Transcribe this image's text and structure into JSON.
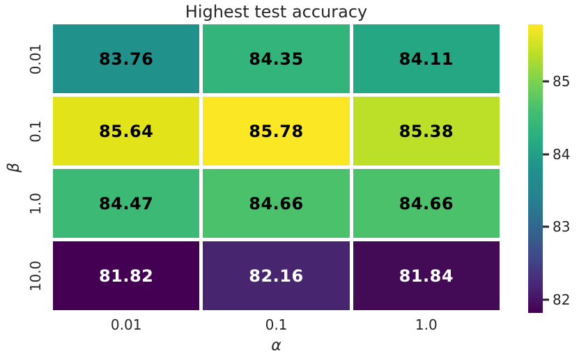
{
  "figure": {
    "background": "#ffffff",
    "text_color": "#262626"
  },
  "chart_data": {
    "type": "heatmap",
    "title": "Highest test accuracy",
    "xlabel": "α",
    "ylabel": "β",
    "colormap": "viridis",
    "x_tick_labels": [
      "0.01",
      "0.1",
      "1.0"
    ],
    "y_tick_labels": [
      "0.01",
      "0.1",
      "1.0",
      "10.0"
    ],
    "rows": [
      {
        "y": "0.01",
        "cells": [
          {
            "x": "0.01",
            "value": 83.76,
            "label": "83.76",
            "color": "#21918c",
            "text_color": "#000000"
          },
          {
            "x": "0.1",
            "value": 84.35,
            "label": "84.35",
            "color": "#32b47a",
            "text_color": "#000000"
          },
          {
            "x": "1.0",
            "value": 84.11,
            "label": "84.11",
            "color": "#26a783",
            "text_color": "#000000"
          }
        ]
      },
      {
        "y": "0.1",
        "cells": [
          {
            "x": "0.01",
            "value": 85.64,
            "label": "85.64",
            "color": "#e2e318",
            "text_color": "#000000"
          },
          {
            "x": "0.1",
            "value": 85.78,
            "label": "85.78",
            "color": "#fce724",
            "text_color": "#000000"
          },
          {
            "x": "1.0",
            "value": 85.38,
            "label": "85.38",
            "color": "#bcdf27",
            "text_color": "#000000"
          }
        ]
      },
      {
        "y": "1.0",
        "cells": [
          {
            "x": "0.01",
            "value": 84.47,
            "label": "84.47",
            "color": "#3bb975",
            "text_color": "#000000"
          },
          {
            "x": "0.1",
            "value": 84.66,
            "label": "84.66",
            "color": "#4cc16c",
            "text_color": "#000000"
          },
          {
            "x": "1.0",
            "value": 84.66,
            "label": "84.66",
            "color": "#4cc16c",
            "text_color": "#000000"
          }
        ]
      },
      {
        "y": "10.0",
        "cells": [
          {
            "x": "0.01",
            "value": 81.82,
            "label": "81.82",
            "color": "#440154",
            "text_color": "#ffffff"
          },
          {
            "x": "0.1",
            "value": 82.16,
            "label": "82.16",
            "color": "#48266f",
            "text_color": "#ffffff"
          },
          {
            "x": "1.0",
            "value": 81.84,
            "label": "81.84",
            "color": "#430a55",
            "text_color": "#ffffff"
          }
        ]
      }
    ],
    "colorbar": {
      "vmin": 81.82,
      "vmax": 85.78,
      "tick_values": [
        85,
        84,
        83,
        82
      ],
      "tick_labels": [
        "85",
        "84",
        "83",
        "82"
      ],
      "gradient_bottom_to_top": [
        "#440154",
        "#482878",
        "#3e4a89",
        "#31688e",
        "#26828e",
        "#21918c",
        "#27ad81",
        "#44be70",
        "#7ad151",
        "#bddf26",
        "#fde725"
      ]
    }
  }
}
